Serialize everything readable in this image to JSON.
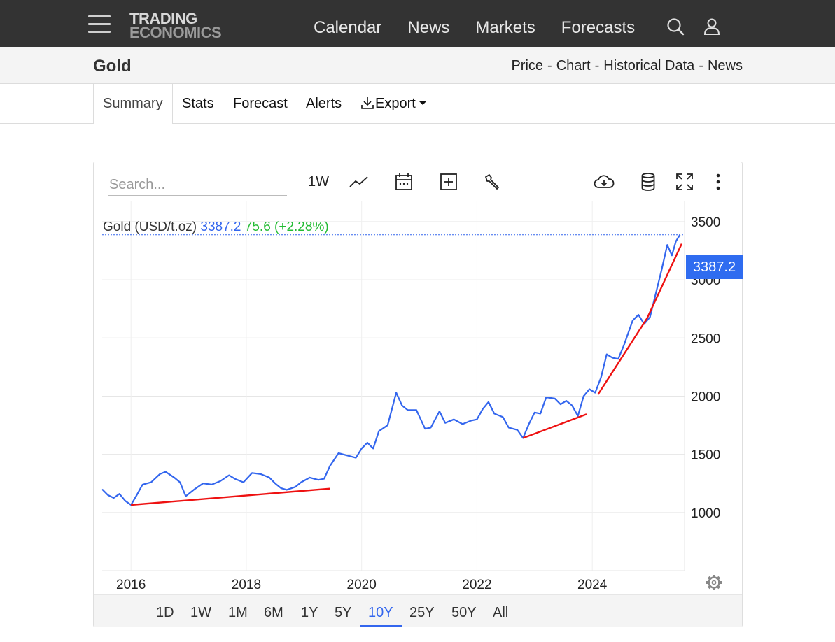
{
  "header": {
    "logo_line1": "TRADING",
    "logo_line2": "ECONOMICS",
    "nav": [
      "Calendar",
      "News",
      "Markets",
      "Forecasts"
    ],
    "icons": [
      "menu-icon",
      "search-icon",
      "user-icon"
    ]
  },
  "titlebar": {
    "title": "Gold",
    "crumbs": [
      "Price",
      "Chart",
      "Historical Data",
      "News"
    ]
  },
  "tabs": {
    "summary": "Summary",
    "stats": "Stats",
    "forecast": "Forecast",
    "alerts": "Alerts",
    "export": "Export"
  },
  "toolbar": {
    "search_placeholder": "Search...",
    "interval": "1W",
    "icons": [
      "line-chart-icon",
      "calendar-icon",
      "add-box-icon",
      "wrench-icon",
      "cloud-download-icon",
      "database-icon",
      "fullscreen-icon",
      "more-vert-icon"
    ]
  },
  "legend": {
    "name": "Gold (USD/t.oz)",
    "price": "3387.2",
    "change": "75.6 (+2.28%)"
  },
  "price_tag": "3387.2",
  "ranges": [
    "1D",
    "1W",
    "1M",
    "6M",
    "1Y",
    "5Y",
    "10Y",
    "25Y",
    "50Y",
    "All"
  ],
  "active_range": "10Y",
  "colors": {
    "nav_bg": "#333333",
    "series": "#3366ee",
    "trendline": "#ee1111",
    "change_up": "#22bb33"
  },
  "chart_data": {
    "type": "line",
    "x_ticks": [
      "2016",
      "2018",
      "2020",
      "2022",
      "2024"
    ],
    "y_ticks": [
      1000,
      1500,
      2000,
      2500,
      3000,
      3500
    ],
    "xlim": [
      2015.5,
      2025.6
    ],
    "ylim": [
      500,
      3680
    ],
    "last_value": 3387.2,
    "series": [
      {
        "values": [
          [
            2015.5,
            1200
          ],
          [
            2015.6,
            1150
          ],
          [
            2015.7,
            1125
          ],
          [
            2015.8,
            1160
          ],
          [
            2015.9,
            1100
          ],
          [
            2016.0,
            1065
          ],
          [
            2016.1,
            1150
          ],
          [
            2016.2,
            1240
          ],
          [
            2016.35,
            1260
          ],
          [
            2016.5,
            1330
          ],
          [
            2016.6,
            1350
          ],
          [
            2016.75,
            1300
          ],
          [
            2016.85,
            1260
          ],
          [
            2016.95,
            1140
          ],
          [
            2017.1,
            1200
          ],
          [
            2017.25,
            1250
          ],
          [
            2017.4,
            1240
          ],
          [
            2017.55,
            1270
          ],
          [
            2017.7,
            1320
          ],
          [
            2017.8,
            1290
          ],
          [
            2017.95,
            1260
          ],
          [
            2018.1,
            1340
          ],
          [
            2018.25,
            1330
          ],
          [
            2018.4,
            1300
          ],
          [
            2018.5,
            1250
          ],
          [
            2018.6,
            1210
          ],
          [
            2018.7,
            1195
          ],
          [
            2018.85,
            1220
          ],
          [
            2018.95,
            1260
          ],
          [
            2019.1,
            1300
          ],
          [
            2019.25,
            1280
          ],
          [
            2019.35,
            1290
          ],
          [
            2019.45,
            1400
          ],
          [
            2019.6,
            1510
          ],
          [
            2019.75,
            1490
          ],
          [
            2019.9,
            1470
          ],
          [
            2020.0,
            1550
          ],
          [
            2020.1,
            1600
          ],
          [
            2020.2,
            1550
          ],
          [
            2020.3,
            1700
          ],
          [
            2020.45,
            1750
          ],
          [
            2020.6,
            2030
          ],
          [
            2020.7,
            1920
          ],
          [
            2020.8,
            1880
          ],
          [
            2020.95,
            1880
          ],
          [
            2021.1,
            1720
          ],
          [
            2021.2,
            1730
          ],
          [
            2021.35,
            1870
          ],
          [
            2021.45,
            1770
          ],
          [
            2021.6,
            1800
          ],
          [
            2021.75,
            1760
          ],
          [
            2021.9,
            1790
          ],
          [
            2022.0,
            1800
          ],
          [
            2022.1,
            1890
          ],
          [
            2022.2,
            1950
          ],
          [
            2022.3,
            1850
          ],
          [
            2022.45,
            1820
          ],
          [
            2022.55,
            1730
          ],
          [
            2022.7,
            1710
          ],
          [
            2022.8,
            1640
          ],
          [
            2022.9,
            1760
          ],
          [
            2023.0,
            1860
          ],
          [
            2023.1,
            1850
          ],
          [
            2023.2,
            1990
          ],
          [
            2023.35,
            1980
          ],
          [
            2023.45,
            1930
          ],
          [
            2023.55,
            1960
          ],
          [
            2023.65,
            1920
          ],
          [
            2023.75,
            1830
          ],
          [
            2023.85,
            2000
          ],
          [
            2023.95,
            2060
          ],
          [
            2024.05,
            2030
          ],
          [
            2024.15,
            2160
          ],
          [
            2024.25,
            2360
          ],
          [
            2024.35,
            2330
          ],
          [
            2024.45,
            2320
          ],
          [
            2024.55,
            2440
          ],
          [
            2024.7,
            2650
          ],
          [
            2024.8,
            2700
          ],
          [
            2024.9,
            2620
          ],
          [
            2025.0,
            2680
          ],
          [
            2025.1,
            2880
          ],
          [
            2025.2,
            3080
          ],
          [
            2025.3,
            3300
          ],
          [
            2025.38,
            3210
          ],
          [
            2025.45,
            3330
          ],
          [
            2025.52,
            3387.2
          ]
        ]
      }
    ],
    "trendlines": [
      [
        [
          2016.0,
          1065
        ],
        [
          2019.45,
          1205
        ]
      ],
      [
        [
          2022.8,
          1640
        ],
        [
          2023.9,
          1845
        ]
      ],
      [
        [
          2024.1,
          2015
        ],
        [
          2024.95,
          2670
        ],
        [
          2025.55,
          3310
        ]
      ]
    ]
  }
}
